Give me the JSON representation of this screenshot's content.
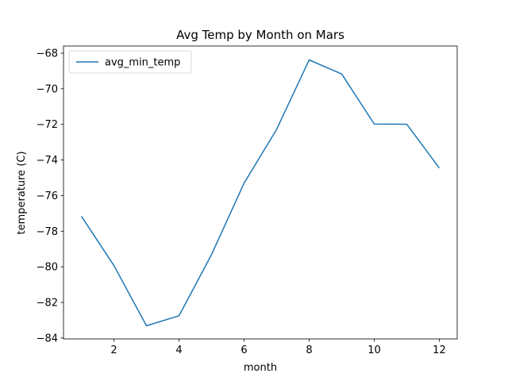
{
  "chart_data": {
    "type": "line",
    "title": "Avg Temp by Month on Mars",
    "xlabel": "month",
    "ylabel": "temperature (C)",
    "xlim": [
      0.45,
      12.55
    ],
    "ylim": [
      -84.05,
      -67.6
    ],
    "xticks": [
      2,
      4,
      6,
      8,
      10,
      12
    ],
    "yticks": [
      -84,
      -82,
      -80,
      -78,
      -76,
      -74,
      -72,
      -70,
      -68
    ],
    "x": [
      1,
      2,
      3,
      4,
      5,
      6,
      7,
      8,
      9,
      10,
      11,
      12
    ],
    "series": [
      {
        "name": "avg_min_temp",
        "color": "#1f77b4",
        "values": [
          -77.16,
          -79.93,
          -83.31,
          -82.75,
          -79.31,
          -75.3,
          -72.28,
          -68.38,
          -69.17,
          -71.98,
          -71.99,
          -74.45
        ]
      }
    ],
    "legend": "top-left",
    "grid": false
  }
}
